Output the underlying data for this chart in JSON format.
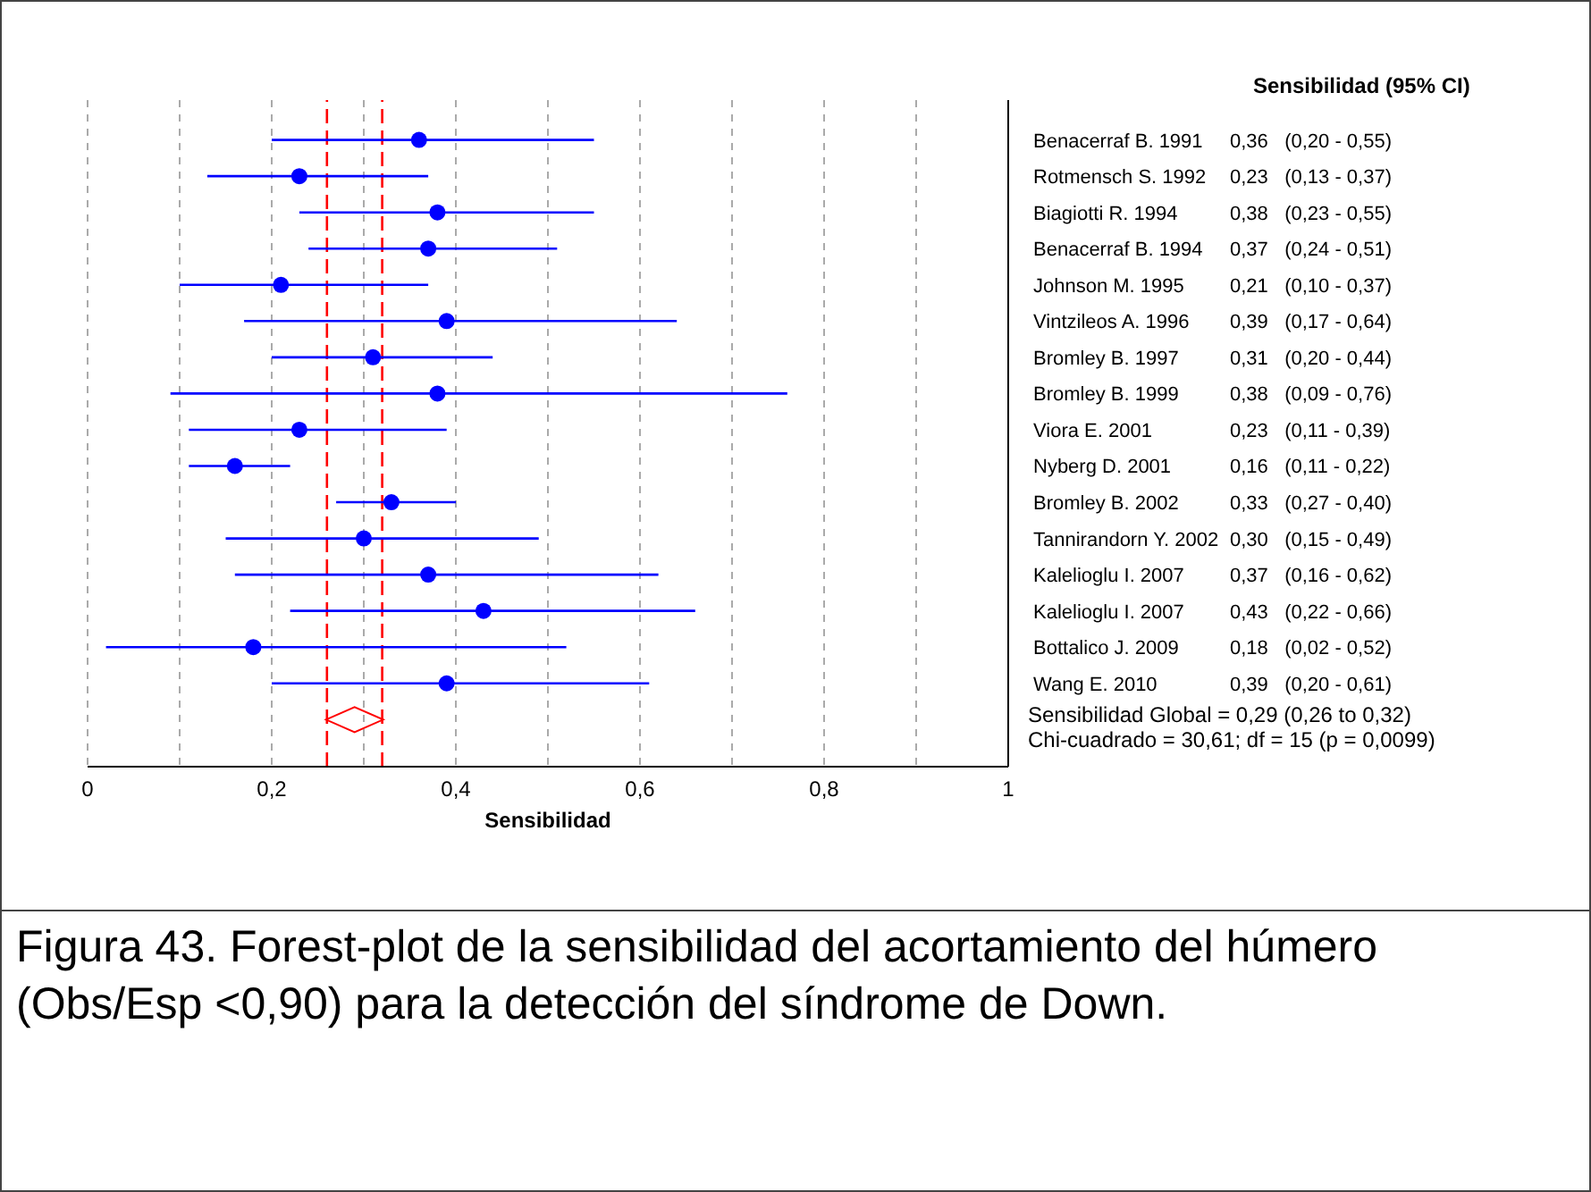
{
  "chart_data": {
    "type": "scatter",
    "orientation": "horizontal",
    "xlabel": "Sensibilidad",
    "categories": [
      "Benacerraf B. 1991",
      "Rotmensch S. 1992",
      "Biagiotti R. 1994",
      "Benacerraf B. 1994",
      "Johnson M. 1995",
      "Vintzileos A. 1996",
      "Bromley B. 1997",
      "Bromley B. 1999",
      "Viora E. 2001",
      "Nyberg D. 2001",
      "Bromley B. 2002",
      "Tannirandorn Y. 2002",
      "Kalelioglu I. 2007",
      "Kalelioglu I. 2007",
      "Bottalico J. 2009",
      "Wang E. 2010",
      null
    ],
    "series": [
      {
        "type": "scatter",
        "marker": "circle",
        "color": "#0000ff",
        "value_labels": [
          "0,36   (0,20 - 0,55)",
          "0,23   (0,13 - 0,37)",
          "0,38   (0,23 - 0,55)",
          "0,37   (0,24 - 0,51)",
          "0,21   (0,10 - 0,37)",
          "0,39   (0,17 - 0,64)",
          "0,31   (0,20 - 0,44)",
          "0,38   (0,09 - 0,76)",
          "0,23   (0,11 - 0,39)",
          "0,16   (0,11 - 0,22)",
          "0,33   (0,27 - 0,40)",
          "0,30   (0,15 - 0,49)",
          "0,37   (0,16 - 0,62)",
          "0,43   (0,22 - 0,66)",
          "0,18   (0,02 - 0,52)",
          "0,39   (0,20 - 0,61)",
          null
        ],
        "values": [
          0.36,
          0.23,
          0.38,
          0.37,
          0.21,
          0.39,
          0.31,
          0.38,
          0.23,
          0.16,
          0.33,
          0.3,
          0.37,
          0.43,
          0.18,
          0.39,
          null
        ],
        "errors": [
          [
            0.2,
            0.55
          ],
          [
            0.13,
            0.37
          ],
          [
            0.23,
            0.55
          ],
          [
            0.24,
            0.51
          ],
          [
            0.1,
            0.37
          ],
          [
            0.17,
            0.64
          ],
          [
            0.2,
            0.44
          ],
          [
            0.09,
            0.76
          ],
          [
            0.11,
            0.39
          ],
          [
            0.11,
            0.22
          ],
          [
            0.27,
            0.4
          ],
          [
            0.15,
            0.49
          ],
          [
            0.16,
            0.62
          ],
          [
            0.22,
            0.66
          ],
          [
            0.02,
            0.52
          ],
          [
            0.2,
            0.61
          ],
          null
        ]
      },
      {
        "type": "scatter",
        "marker": "diamond",
        "color": "#ff0000",
        "values": [
          null,
          null,
          null,
          null,
          null,
          null,
          null,
          null,
          null,
          null,
          null,
          null,
          null,
          null,
          null,
          null,
          0.29
        ]
      }
    ],
    "xlim": [
      0,
      1
    ],
    "xticks": [
      0,
      {
        "value": 0.1,
        "label": null
      },
      {
        "value": 0.2,
        "label": "0,2"
      },
      {
        "value": 0.3,
        "label": null
      },
      {
        "value": 0.4,
        "label": "0,4"
      },
      {
        "value": 0.5,
        "label": null
      },
      {
        "value": 0.6,
        "label": "0,6"
      },
      {
        "value": 0.7,
        "label": null
      },
      {
        "value": 0.8,
        "label": "0,8"
      },
      {
        "value": 0.9,
        "label": null
      },
      1
    ],
    "grid": "x",
    "ref_lines": [
      {
        "axis": "x",
        "value": 0.26,
        "color": "#ff0000",
        "line_style": "dashed"
      },
      {
        "axis": "x",
        "value": 0.32,
        "color": "#ff0000",
        "line_style": "dashed"
      }
    ],
    "annotations": [
      "Sensibilidad (95% CI)",
      "Sensibilidad Global = 0,29 (0,26 to 0,32)",
      "Chi-cuadrado = 30,61; df =  15 (p = 0,0099)",
      "Figura 43. Forest-plot de la sensibilidad del acortamiento del húmero (Obs/Esp <0,90) para la detección del síndrome de Down."
    ]
  }
}
